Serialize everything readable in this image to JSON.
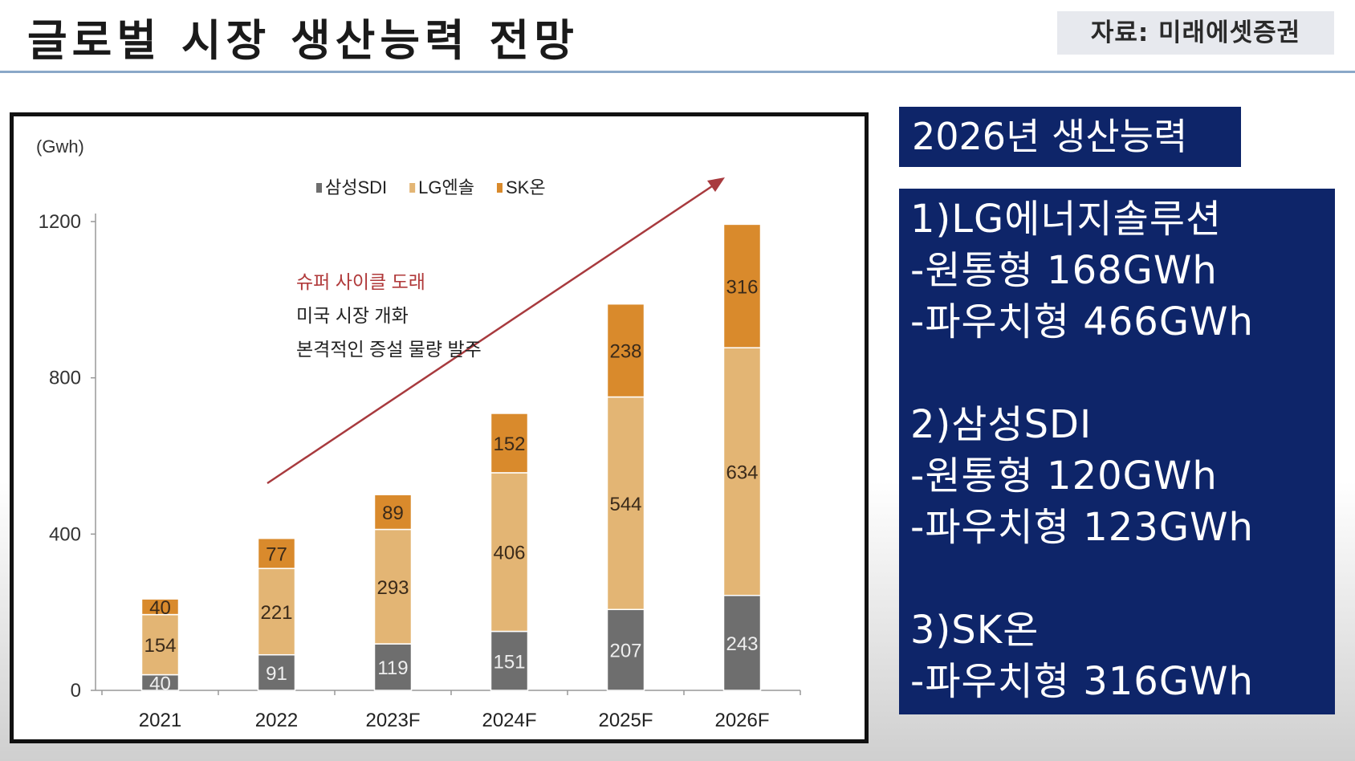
{
  "header": {
    "title": "글로벌 시장 생산능력 전망",
    "source": "자료: 미래에셋증권"
  },
  "panel": {
    "title": "2026년 생산능력",
    "groups": [
      {
        "heading": "1)LG에너지솔루션",
        "lines": [
          "-원통형 168GWh",
          "-파우치형 466GWh"
        ]
      },
      {
        "heading": "2)삼성SDI",
        "lines": [
          "-원통형 120GWh",
          "-파우치형 123GWh"
        ]
      },
      {
        "heading": "3)SK온",
        "lines": [
          "-파우치형 316GWh"
        ]
      }
    ]
  },
  "chart_data": {
    "type": "bar",
    "stacked": true,
    "unit_label": "(Gwh)",
    "categories": [
      "2021",
      "2022",
      "2023F",
      "2024F",
      "2025F",
      "2026F"
    ],
    "series": [
      {
        "name": "삼성SDI",
        "color": "#6e6e6e",
        "values": [
          40,
          91,
          119,
          151,
          207,
          243
        ]
      },
      {
        "name": "LG엔솔",
        "color": "#e3b574",
        "values": [
          154,
          221,
          293,
          406,
          544,
          634
        ]
      },
      {
        "name": "SK온",
        "color": "#d98a2c",
        "values": [
          40,
          77,
          89,
          152,
          238,
          316
        ]
      }
    ],
    "yticks": [
      0,
      400,
      800,
      1200
    ],
    "ylim": [
      0,
      1200
    ],
    "legend_position": "top-center",
    "annotation": {
      "headline": "슈퍼 사이클 도래",
      "headline_color": "#b0393a",
      "lines": [
        "미국 시장 개화",
        "본격적인 증설 물량 발주"
      ]
    },
    "trend_arrow_color": "#a83a3e"
  }
}
